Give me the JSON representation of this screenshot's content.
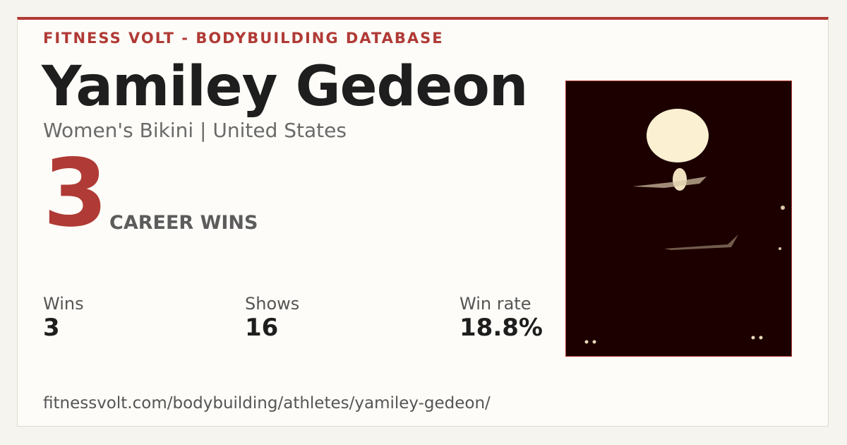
{
  "header": {
    "brand": "FITNESS VOLT - BODYBUILDING DATABASE"
  },
  "athlete": {
    "name": "Yamiley Gedeon",
    "subtitle": "Women's Bikini | United States"
  },
  "headline": {
    "value": "3",
    "label": "CAREER WINS"
  },
  "stats": [
    {
      "label": "Wins",
      "value": "3"
    },
    {
      "label": "Shows",
      "value": "16"
    },
    {
      "label": "Win rate",
      "value": "18.8%"
    }
  ],
  "footer": {
    "url": "fitnessvolt.com/bodybuilding/athletes/yamiley-gedeon/"
  }
}
